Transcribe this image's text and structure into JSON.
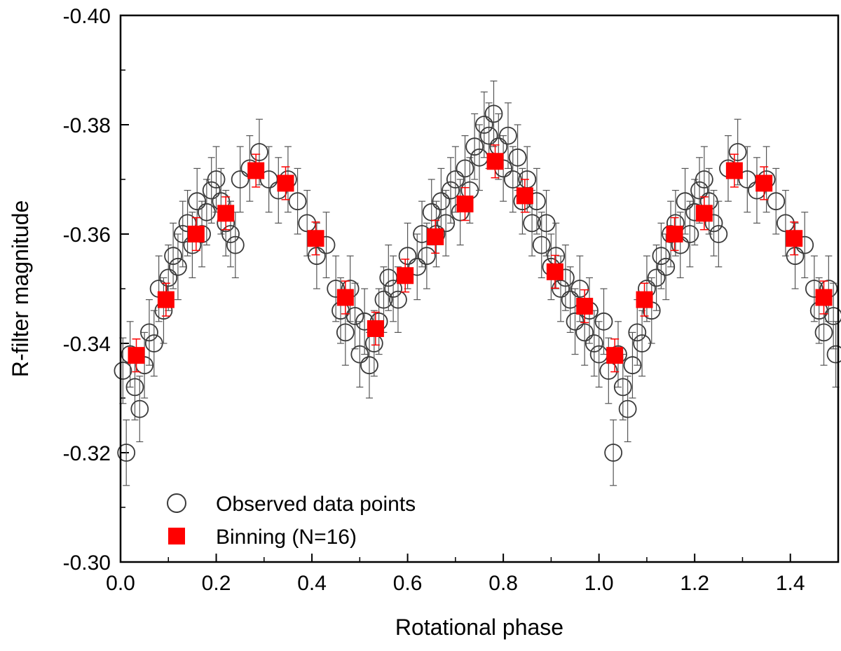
{
  "chart_data": {
    "type": "scatter",
    "xlabel": "Rotational phase",
    "ylabel": "R-filter magnitude",
    "xlim": [
      0.0,
      1.5
    ],
    "ylim": [
      -0.3,
      -0.4
    ],
    "y_inverted": true,
    "x_ticks": [
      "0.0",
      "0.2",
      "0.4",
      "0.6",
      "0.8",
      "1.0",
      "1.2",
      "1.4"
    ],
    "x_tick_values": [
      0.0,
      0.2,
      0.4,
      0.6,
      0.8,
      1.0,
      1.2,
      1.4
    ],
    "y_ticks": [
      "-0.30",
      "-0.32",
      "-0.34",
      "-0.36",
      "-0.38",
      "-0.40"
    ],
    "y_tick_values": [
      -0.3,
      -0.32,
      -0.34,
      -0.36,
      -0.38,
      -0.4
    ],
    "legend_position": "bottom-left",
    "series": [
      {
        "name": "Observed data points",
        "marker": "open-circle",
        "color": "#3a3a3a",
        "error": 0.006,
        "x": [
          0.005,
          0.012,
          0.02,
          0.03,
          0.04,
          0.05,
          0.06,
          0.07,
          0.08,
          0.09,
          0.1,
          0.11,
          0.12,
          0.13,
          0.14,
          0.15,
          0.16,
          0.17,
          0.18,
          0.19,
          0.2,
          0.21,
          0.22,
          0.23,
          0.24,
          0.25,
          0.27,
          0.29,
          0.31,
          0.33,
          0.35,
          0.37,
          0.39,
          0.41,
          0.43,
          0.45,
          0.46,
          0.47,
          0.48,
          0.49,
          0.5,
          0.51,
          0.52,
          0.53,
          0.54,
          0.55,
          0.56,
          0.57,
          0.58,
          0.6,
          0.62,
          0.63,
          0.64,
          0.65,
          0.66,
          0.67,
          0.68,
          0.69,
          0.7,
          0.71,
          0.72,
          0.73,
          0.74,
          0.75,
          0.76,
          0.77,
          0.78,
          0.79,
          0.8,
          0.81,
          0.82,
          0.83,
          0.84,
          0.85,
          0.86,
          0.87,
          0.88,
          0.89,
          0.9,
          0.91,
          0.92,
          0.93,
          0.94,
          0.95,
          0.96,
          0.97,
          0.98,
          0.99,
          1.0,
          1.01,
          1.02,
          1.03,
          1.04,
          1.05,
          1.06,
          1.07,
          1.08,
          1.09,
          1.1,
          1.11,
          1.12,
          1.13,
          1.14,
          1.15,
          1.16,
          1.17,
          1.18,
          1.19,
          1.2,
          1.21,
          1.22,
          1.23,
          1.24,
          1.25,
          1.27,
          1.29,
          1.31,
          1.33,
          1.35,
          1.37,
          1.39,
          1.41,
          1.43,
          1.45,
          1.46,
          1.47,
          1.48,
          1.49,
          1.495
        ],
        "y": [
          -0.335,
          -0.32,
          -0.338,
          -0.332,
          -0.328,
          -0.336,
          -0.342,
          -0.34,
          -0.35,
          -0.346,
          -0.352,
          -0.356,
          -0.354,
          -0.36,
          -0.362,
          -0.358,
          -0.366,
          -0.36,
          -0.364,
          -0.368,
          -0.37,
          -0.366,
          -0.362,
          -0.36,
          -0.358,
          -0.37,
          -0.372,
          -0.375,
          -0.37,
          -0.368,
          -0.37,
          -0.366,
          -0.362,
          -0.356,
          -0.358,
          -0.35,
          -0.346,
          -0.342,
          -0.35,
          -0.345,
          -0.338,
          -0.344,
          -0.336,
          -0.34,
          -0.344,
          -0.348,
          -0.352,
          -0.35,
          -0.348,
          -0.356,
          -0.354,
          -0.36,
          -0.356,
          -0.364,
          -0.36,
          -0.366,
          -0.362,
          -0.368,
          -0.37,
          -0.364,
          -0.372,
          -0.368,
          -0.376,
          -0.374,
          -0.38,
          -0.378,
          -0.382,
          -0.376,
          -0.372,
          -0.378,
          -0.37,
          -0.374,
          -0.366,
          -0.37,
          -0.362,
          -0.366,
          -0.358,
          -0.362,
          -0.354,
          -0.356,
          -0.35,
          -0.352,
          -0.348,
          -0.344,
          -0.35,
          -0.342,
          -0.346,
          -0.34,
          -0.338,
          -0.344,
          -0.335,
          -0.32,
          -0.338,
          -0.332,
          -0.328,
          -0.336,
          -0.342,
          -0.34,
          -0.35,
          -0.346,
          -0.352,
          -0.356,
          -0.354,
          -0.36,
          -0.362,
          -0.358,
          -0.366,
          -0.36,
          -0.364,
          -0.368,
          -0.37,
          -0.366,
          -0.362,
          -0.36,
          -0.372,
          -0.375,
          -0.37,
          -0.368,
          -0.37,
          -0.366,
          -0.362,
          -0.356,
          -0.358,
          -0.35,
          -0.346,
          -0.342,
          -0.35,
          -0.345,
          -0.338
        ]
      },
      {
        "name": "Binning (N=16)",
        "marker": "filled-square",
        "color": "#ff0000",
        "error": 0.003,
        "x": [
          0.033,
          0.095,
          0.158,
          0.22,
          0.283,
          0.345,
          0.408,
          0.47,
          0.533,
          0.595,
          0.658,
          0.72,
          0.783,
          0.845,
          0.908,
          0.97,
          1.033,
          1.095,
          1.158,
          1.22,
          1.283,
          1.345,
          1.408,
          1.47
        ],
        "y": [
          -0.3378,
          -0.348,
          -0.36,
          -0.3638,
          -0.3716,
          -0.3693,
          -0.3592,
          -0.3484,
          -0.3427,
          -0.3524,
          -0.3595,
          -0.3655,
          -0.3733,
          -0.367,
          -0.3531,
          -0.3468,
          -0.3378,
          -0.348,
          -0.36,
          -0.3638,
          -0.3716,
          -0.3693,
          -0.3592,
          -0.3484
        ]
      }
    ]
  }
}
